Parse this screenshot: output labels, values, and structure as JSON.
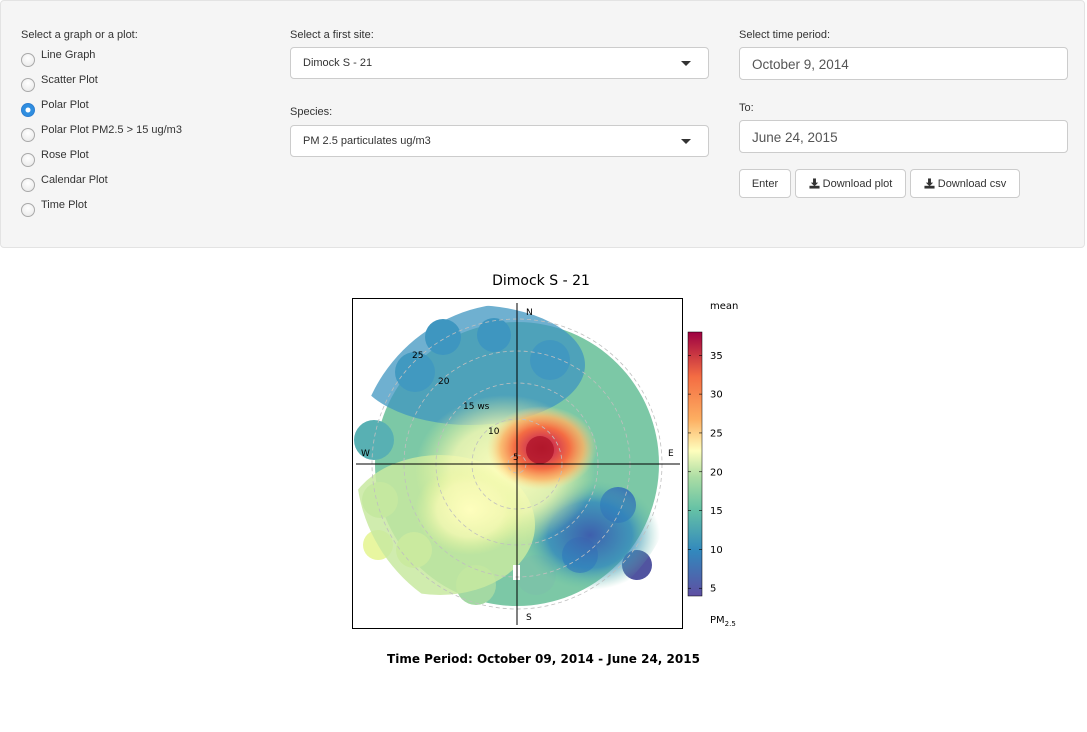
{
  "controls": {
    "graph_label": "Select a graph or a plot:",
    "graph_options": [
      {
        "label": "Line Graph",
        "checked": false
      },
      {
        "label": "Scatter Plot",
        "checked": false
      },
      {
        "label": "Polar Plot",
        "checked": true
      },
      {
        "label": "Polar Plot PM2.5 > 15 ug/m3",
        "checked": false
      },
      {
        "label": "Rose Plot",
        "checked": false
      },
      {
        "label": "Calendar Plot",
        "checked": false
      },
      {
        "label": "Time Plot",
        "checked": false
      }
    ],
    "site_label": "Select a first site:",
    "site_value": "Dimock S - 21",
    "species_label": "Species:",
    "species_value": "PM 2.5 particulates ug/m3",
    "time_label": "Select time period:",
    "start_date": "October 9, 2014",
    "to_label": "To:",
    "end_date": "June 24, 2015",
    "enter_label": "Enter",
    "download_plot_label": "Download plot",
    "download_csv_label": "Download csv"
  },
  "plot": {
    "title": "Dimock S  -  21",
    "compass": {
      "north": "N",
      "south": "S",
      "east": "E",
      "west": "W"
    },
    "ring_labels": [
      "5",
      "10",
      "15 ws",
      "20",
      "25"
    ],
    "colorbar": {
      "title": "mean",
      "ticks": [
        "5",
        "10",
        "15",
        "20",
        "25",
        "30",
        "35"
      ],
      "unit_main": "PM",
      "unit_sub": "2.5"
    },
    "footer": "Time Period:  October 09, 2014  -  June 24, 2015"
  },
  "chart_data": {
    "type": "heatmap",
    "title": "Dimock S  -  21",
    "projection": "polar",
    "radial_axis_label": "ws",
    "radial_ticks": [
      5,
      10,
      15,
      20,
      25
    ],
    "colorbar_label": "mean",
    "colorbar_unit": "PM2.5",
    "colorbar_range": [
      4,
      38
    ],
    "colorbar_ticks": [
      5,
      10,
      15,
      20,
      25,
      30,
      35
    ],
    "directions": [
      "N",
      "E",
      "S",
      "W"
    ],
    "hotspot": {
      "direction": "ENE",
      "ws": 5,
      "value": 37
    },
    "colors": {
      "high": "#b2182b",
      "mid": "#fdfdb0",
      "low": "#5e4fa2"
    }
  }
}
